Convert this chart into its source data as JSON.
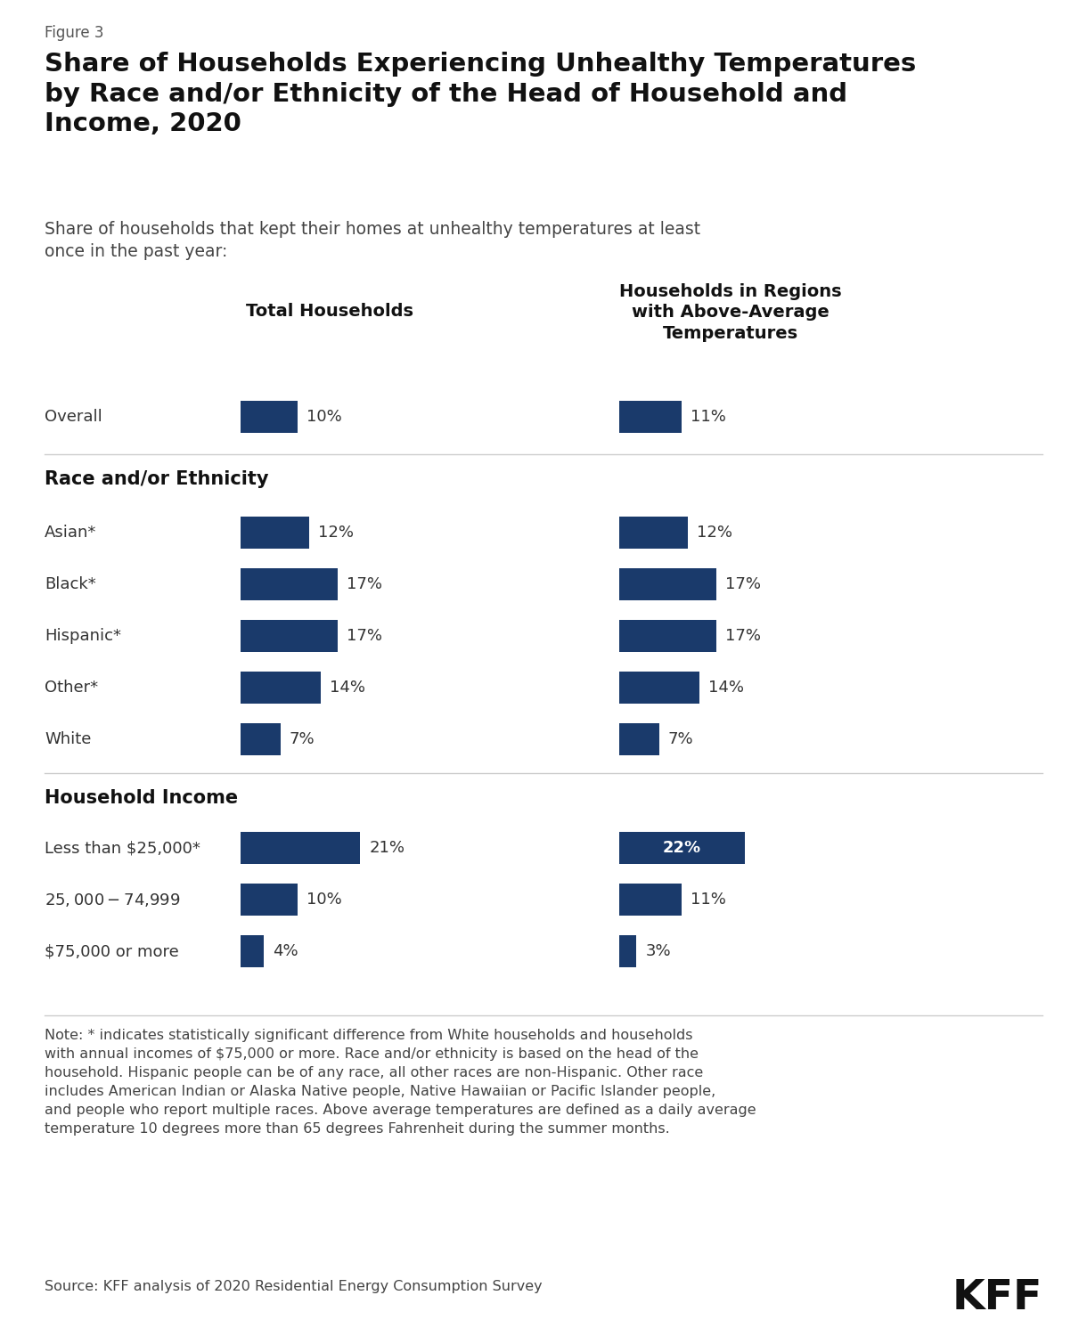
{
  "figure_label": "Figure 3",
  "title": "Share of Households Experiencing Unhealthy Temperatures\nby Race and/or Ethnicity of the Head of Household and\nIncome, 2020",
  "subtitle": "Share of households that kept their homes at unhealthy temperatures at least\nonce in the past year:",
  "col1_header": "Total Households",
  "col2_header": "Households in Regions\nwith Above-Average\nTemperatures",
  "bar_color": "#1a3a6b",
  "rows": [
    {
      "label": "Overall",
      "val1": 10,
      "val2": 11,
      "section": "data",
      "highlight2": false
    },
    {
      "label": "Race and/or Ethnicity",
      "val1": null,
      "val2": null,
      "section": "header"
    },
    {
      "label": "Asian*",
      "val1": 12,
      "val2": 12,
      "section": "data",
      "highlight2": false
    },
    {
      "label": "Black*",
      "val1": 17,
      "val2": 17,
      "section": "data",
      "highlight2": false
    },
    {
      "label": "Hispanic*",
      "val1": 17,
      "val2": 17,
      "section": "data",
      "highlight2": false
    },
    {
      "label": "Other*",
      "val1": 14,
      "val2": 14,
      "section": "data",
      "highlight2": false
    },
    {
      "label": "White",
      "val1": 7,
      "val2": 7,
      "section": "data",
      "highlight2": false
    },
    {
      "label": "Household Income",
      "val1": null,
      "val2": null,
      "section": "header"
    },
    {
      "label": "Less than $25,000*",
      "val1": 21,
      "val2": 22,
      "section": "data",
      "highlight2": true
    },
    {
      "label": "$25,000-$74,999",
      "val1": 10,
      "val2": 11,
      "section": "data",
      "highlight2": false
    },
    {
      "label": "$75,000 or more",
      "val1": 4,
      "val2": 3,
      "section": "data",
      "highlight2": false
    }
  ],
  "note": "Note: * indicates statistically significant difference from White households and households with annual incomes of $75,000 or more. Race and/or ethnicity is based on the head of the household. Hispanic people can be of any race, all other races are non-Hispanic. Other race includes American Indian or Alaska Native people, Native Hawaiian or Pacific Islander people, and people who report multiple races. Above average temperatures are defined as a daily average temperature 10 degrees more than 65 degrees Fahrenheit during the summer months.",
  "source": "Source: KFF analysis of 2020 Residential Energy Consumption Survey",
  "kff_logo": "KFF",
  "bg_color": "#ffffff"
}
